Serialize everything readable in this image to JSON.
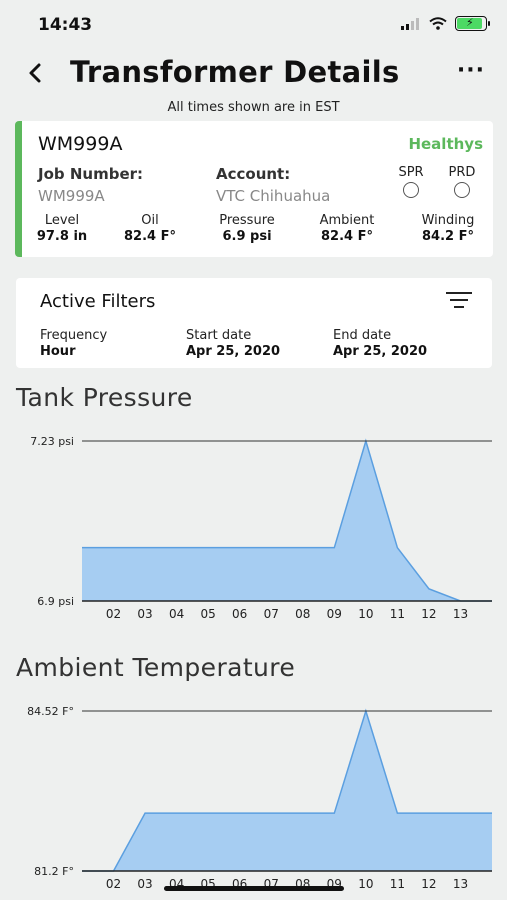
{
  "status_bar": {
    "time": "14:43",
    "battery_level": 0.9,
    "battery_color": "#4cd964"
  },
  "header": {
    "title": "Transformer Details",
    "more_label": "···",
    "tz_note": "All times shown are in EST"
  },
  "transformer": {
    "id": "WM999A",
    "status": "Healthys",
    "status_color": "#5cb85c",
    "job_number_label": "Job Number:",
    "job_number": "WM999A",
    "account_label": "Account:",
    "account": "VTC Chihuahua",
    "spr_label": "SPR",
    "prd_label": "PRD",
    "metrics": [
      {
        "label": "Level",
        "value": "97.8 in"
      },
      {
        "label": "Oil",
        "value": "82.4 F°"
      },
      {
        "label": "Pressure",
        "value": "6.9 psi"
      },
      {
        "label": "Ambient",
        "value": "82.4 F°"
      },
      {
        "label": "Winding",
        "value": "84.2 F°"
      }
    ]
  },
  "filters": {
    "title": "Active Filters",
    "frequency_label": "Frequency",
    "frequency": "Hour",
    "start_label": "Start date",
    "start": "Apr 25, 2020",
    "end_label": "End date",
    "end": "Apr 25, 2020"
  },
  "chart_data": [
    {
      "type": "area",
      "title": "Tank Pressure",
      "categories": [
        "02",
        "03",
        "04",
        "05",
        "06",
        "07",
        "08",
        "09",
        "10",
        "11",
        "12",
        "13"
      ],
      "ylim": [
        6.9,
        7.23
      ],
      "y_tick_labels": [
        "7.23 psi",
        "6.9 psi"
      ],
      "x": [
        1.0,
        2,
        3,
        4,
        5,
        6,
        7,
        8,
        9,
        10,
        11,
        12,
        13,
        14
      ],
      "values": [
        7.01,
        7.01,
        7.01,
        7.01,
        7.01,
        7.01,
        7.01,
        7.01,
        7.01,
        7.23,
        7.01,
        6.925,
        6.9,
        6.9
      ],
      "fill_color": "#a6cdf2",
      "line_color": "#5b9fe0"
    },
    {
      "type": "area",
      "title": "Ambient Temperature",
      "categories": [
        "02",
        "03",
        "04",
        "05",
        "06",
        "07",
        "08",
        "09",
        "10",
        "11",
        "12",
        "13"
      ],
      "ylim": [
        81.2,
        84.52
      ],
      "y_tick_labels": [
        "84.52 F°",
        "81.2 F°"
      ],
      "x": [
        1.0,
        2,
        3,
        4,
        5,
        6,
        7,
        8,
        9,
        10,
        11,
        12,
        13,
        14
      ],
      "values": [
        81.2,
        81.2,
        82.4,
        82.4,
        82.4,
        82.4,
        82.4,
        82.4,
        82.4,
        84.52,
        82.4,
        82.4,
        82.4,
        82.4
      ],
      "fill_color": "#a6cdf2",
      "line_color": "#5b9fe0"
    }
  ]
}
